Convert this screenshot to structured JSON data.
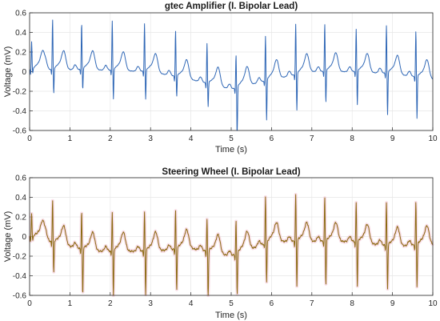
{
  "chart_data": [
    {
      "type": "line",
      "title": "gtec Amplifier (I. Bipolar Lead)",
      "xlabel": "Time (s)",
      "ylabel": "Voltage (mV)",
      "xlim": [
        0,
        10
      ],
      "ylim": [
        -0.6,
        0.6
      ],
      "xticks": [
        0,
        1,
        2,
        3,
        4,
        5,
        6,
        7,
        8,
        9,
        10
      ],
      "yticks": [
        -0.6,
        -0.4,
        -0.2,
        0,
        0.2,
        0.4,
        0.6
      ],
      "grid": true,
      "color": "#2f67b6",
      "series": [
        {
          "beats": [
            {
              "t": 0.05,
              "r": 0.28,
              "s": -0.05
            },
            {
              "t": 0.57,
              "r": 0.51,
              "s": -0.26
            },
            {
              "t": 1.29,
              "r": 0.47,
              "s": -0.22
            },
            {
              "t": 2.05,
              "r": 0.5,
              "s": -0.31
            },
            {
              "t": 2.85,
              "r": 0.48,
              "s": -0.3
            },
            {
              "t": 3.62,
              "r": 0.46,
              "s": -0.22
            },
            {
              "t": 4.4,
              "r": 0.4,
              "s": -0.25
            },
            {
              "t": 5.12,
              "r": 0.33,
              "s": -0.54
            },
            {
              "t": 5.85,
              "r": 0.45,
              "s": -0.42
            },
            {
              "t": 6.6,
              "r": 0.51,
              "s": -0.38
            },
            {
              "t": 7.32,
              "r": 0.48,
              "s": -0.33
            },
            {
              "t": 8.1,
              "r": 0.43,
              "s": -0.35
            },
            {
              "t": 8.85,
              "r": 0.48,
              "s": -0.44
            },
            {
              "t": 9.58,
              "r": 0.46,
              "s": -0.44
            }
          ],
          "baseline": [
            [
              0,
              0.02
            ],
            [
              1.5,
              0.02
            ],
            [
              3.0,
              0.0
            ],
            [
              4.0,
              -0.08
            ],
            [
              5.0,
              -0.18
            ],
            [
              6.0,
              -0.08
            ],
            [
              7.0,
              0.0
            ],
            [
              8.0,
              0.0
            ],
            [
              9.0,
              -0.02
            ],
            [
              10,
              -0.08
            ]
          ]
        }
      ]
    },
    {
      "type": "line",
      "title": "Steering Wheel (I. Bipolar Lead)",
      "xlabel": "Time (s)",
      "ylabel": "Voltage (mV)",
      "xlim": [
        0,
        10
      ],
      "ylim": [
        -0.6,
        0.6
      ],
      "xticks": [
        0,
        1,
        2,
        3,
        4,
        5,
        6,
        7,
        8,
        9,
        10
      ],
      "yticks": [
        -0.6,
        -0.4,
        -0.2,
        0,
        0.2,
        0.4,
        0.6
      ],
      "grid": true,
      "color": "#8a6a10",
      "halo_color": "#f4c6d6",
      "series": [
        {
          "beats": [
            {
              "t": 0.05,
              "r": 0.24,
              "s": -0.05
            },
            {
              "t": 0.57,
              "r": 0.43,
              "s": -0.33
            },
            {
              "t": 1.29,
              "r": 0.38,
              "s": -0.49
            },
            {
              "t": 2.05,
              "r": 0.4,
              "s": -0.48
            },
            {
              "t": 2.85,
              "r": 0.39,
              "s": -0.46
            },
            {
              "t": 3.62,
              "r": 0.39,
              "s": -0.44
            },
            {
              "t": 4.4,
              "r": 0.32,
              "s": -0.53
            },
            {
              "t": 5.12,
              "r": 0.33,
              "s": -0.43
            },
            {
              "t": 5.85,
              "r": 0.47,
              "s": -0.42
            },
            {
              "t": 6.6,
              "r": 0.47,
              "s": -0.47
            },
            {
              "t": 7.32,
              "r": 0.44,
              "s": -0.46
            },
            {
              "t": 8.1,
              "r": 0.4,
              "s": -0.46
            },
            {
              "t": 8.85,
              "r": 0.43,
              "s": -0.46
            },
            {
              "t": 9.58,
              "r": 0.43,
              "s": -0.44
            }
          ],
          "baseline": [
            [
              0,
              0.0
            ],
            [
              1.5,
              -0.15
            ],
            [
              3.0,
              -0.15
            ],
            [
              4.0,
              -0.12
            ],
            [
              5.0,
              -0.2
            ],
            [
              6.0,
              -0.05
            ],
            [
              7.0,
              -0.05
            ],
            [
              8.0,
              -0.05
            ],
            [
              9.0,
              -0.1
            ],
            [
              10,
              -0.08
            ]
          ]
        }
      ]
    }
  ]
}
